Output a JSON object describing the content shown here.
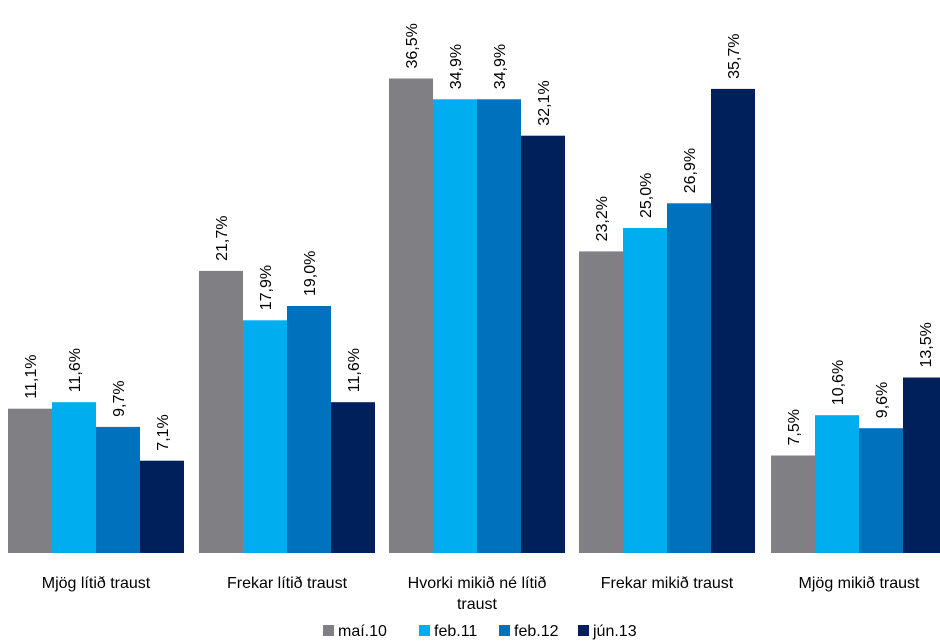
{
  "chart_data": {
    "type": "bar",
    "title": "",
    "xlabel": "",
    "ylabel": "",
    "ylim": [
      0,
      40
    ],
    "grid": false,
    "legend_position": "bottom",
    "categories": [
      "Mjög lítið traust",
      "Frekar lítið traust",
      "Hvorki mikið né lítið traust",
      "Frekar mikið traust",
      "Mjög mikið traust"
    ],
    "series": [
      {
        "name": "maí.10",
        "color": "#808084",
        "values": [
          11.1,
          21.7,
          36.5,
          23.2,
          7.5
        ],
        "labels": [
          "11,1%",
          "21,7%",
          "36,5%",
          "23,2%",
          "7,5%"
        ]
      },
      {
        "name": "feb.11",
        "color": "#00adef",
        "values": [
          11.6,
          17.9,
          34.9,
          25.0,
          10.6
        ],
        "labels": [
          "11,6%",
          "17,9%",
          "34,9%",
          "25,0%",
          "10,6%"
        ]
      },
      {
        "name": "feb.12",
        "color": "#0071bc",
        "values": [
          9.7,
          19.0,
          34.9,
          26.9,
          9.6
        ],
        "labels": [
          "9,7%",
          "19,0%",
          "34,9%",
          "26,9%",
          "9,6%"
        ]
      },
      {
        "name": "jún.13",
        "color": "#00205b",
        "values": [
          7.1,
          11.6,
          32.1,
          35.7,
          13.5
        ],
        "labels": [
          "7,1%",
          "11,6%",
          "32,1%",
          "35,7%",
          "13,5%"
        ]
      }
    ]
  }
}
